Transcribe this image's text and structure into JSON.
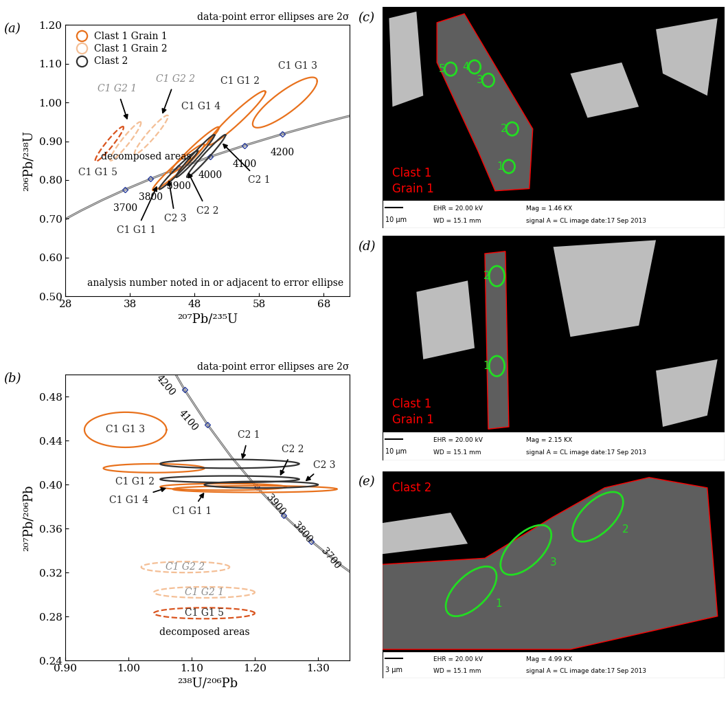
{
  "chart_data": [
    {
      "type": "concordia",
      "panel": "(a)",
      "note": "data-point error ellipses are 2σ",
      "x_label": "²⁰⁷Pb/²³⁵U",
      "y_label": "²⁰⁶Pb/²³⁸U",
      "xlim": [
        28,
        72
      ],
      "xticks": [
        28,
        38,
        48,
        58,
        68
      ],
      "ylim": [
        0.5,
        1.2
      ],
      "yticks": [
        {
          "value": 0.5,
          "label": "0.50"
        },
        {
          "value": 0.6,
          "label": "0.60"
        },
        {
          "value": 0.7,
          "label": "0.70"
        },
        {
          "value": 0.8,
          "label": "0.80"
        },
        {
          "value": 0.9,
          "label": "0.90"
        },
        {
          "value": 1.0,
          "label": "1.00"
        },
        {
          "value": 1.1,
          "label": "1.10"
        },
        {
          "value": 1.2,
          "label": "1.20"
        }
      ],
      "legend": "upper left",
      "concordia": {
        "ages": [
          3400,
          3500,
          3600,
          3700,
          3800,
          3900,
          4000,
          4100,
          4200,
          4300,
          4400
        ],
        "x": [
          27.459,
          30.405,
          33.655,
          37.242,
          41.2,
          45.568,
          50.388,
          55.706,
          61.576,
          68.052,
          75.198
        ],
        "y": [
          0.6946,
          0.7211,
          0.748,
          0.7753,
          0.803,
          0.8312,
          0.8599,
          0.8889,
          0.9185,
          0.9485,
          0.9789
        ],
        "labeled_ages": [
          3700,
          3800,
          3900,
          4000,
          4100,
          4200
        ]
      },
      "series": [
        {
          "name": "Clast 1 Grain 1",
          "color": "#e8711c",
          "line_style": "solid",
          "points": [
            {
              "label": "C1 G1 1",
              "x": 45.5,
              "y": 0.833,
              "x_err": 4.0,
              "y_err": 0.06,
              "rho": 0.97
            },
            {
              "label": "C1 G1 2",
              "x": 54.5,
              "y": 0.96,
              "x_err": 4.5,
              "y_err": 0.07,
              "rho": 0.96
            },
            {
              "label": "C1 G1 3",
              "x": 62.0,
              "y": 1.0,
              "x_err": 5.0,
              "y_err": 0.065,
              "rho": 0.85
            },
            {
              "label": "C1 G1 4",
              "x": 48.0,
              "y": 0.877,
              "x_err": 3.8,
              "y_err": 0.06,
              "rho": 0.97
            },
            {
              "label": "C1 G1 5",
              "x": 34.8,
              "y": 0.893,
              "x_err": 2.2,
              "y_err": 0.045,
              "rho": 0.95,
              "line_style": "dashed",
              "color": "#d9541e"
            }
          ]
        },
        {
          "name": "Clast 1 Grain 2",
          "color": "#f4bf96",
          "line_style": "dashed",
          "points": [
            {
              "label": "C1 G2 1",
              "x": 37.3,
              "y": 0.9,
              "x_err": 2.4,
              "y_err": 0.05,
              "rho": 0.95
            },
            {
              "label": "C1 G2 2",
              "x": 41.3,
              "y": 0.917,
              "x_err": 2.6,
              "y_err": 0.05,
              "rho": 0.95
            }
          ]
        },
        {
          "name": "Clast 2",
          "color": "#333333",
          "line_style": "solid",
          "points": [
            {
              "label": "C2 1",
              "x": 49.8,
              "y": 0.862,
              "x_err": 3.0,
              "y_err": 0.055,
              "rho": 0.98
            },
            {
              "label": "C2 2",
              "x": 48.1,
              "y": 0.862,
              "x_err": 3.0,
              "y_err": 0.055,
              "rho": 0.98
            },
            {
              "label": "C2 3",
              "x": 45.5,
              "y": 0.826,
              "x_err": 3.0,
              "y_err": 0.05,
              "rho": 0.98
            }
          ]
        }
      ],
      "annotations": [
        "decomposed areas",
        "analysis number noted in or adjacent to error ellipse"
      ]
    },
    {
      "type": "concordia",
      "panel": "(b)",
      "note": "data-point error ellipses are 2σ",
      "x_label": "²³⁸U/²⁰⁶Pb",
      "y_label": "²⁰⁷Pb/²⁰⁶Pb",
      "xlim": [
        0.9,
        1.35
      ],
      "xticks": [
        {
          "value": 0.9,
          "label": "0.90"
        },
        {
          "value": 1.0,
          "label": "1.00"
        },
        {
          "value": 1.1,
          "label": "1.10"
        },
        {
          "value": 1.2,
          "label": "1.20"
        },
        {
          "value": 1.3,
          "label": "1.30"
        }
      ],
      "ylim": [
        0.24,
        0.5
      ],
      "yticks": [
        0.24,
        0.28,
        0.32,
        0.36,
        {
          "value": 0.4,
          "label": "0.40"
        },
        0.44,
        0.48
      ],
      "concordia": {
        "ages": [
          3500,
          3600,
          3700,
          3800,
          3900,
          4000,
          4100,
          4200,
          4300
        ],
        "x": [
          1.3868,
          1.3369,
          1.2898,
          1.2453,
          1.2031,
          1.1629,
          1.125,
          1.0887,
          1.0543
        ],
        "y": [
          0.3059,
          0.32647,
          0.34854,
          0.37229,
          0.39779,
          0.42518,
          0.45472,
          0.48644,
          0.52059
        ],
        "labeled_ages": [
          3700,
          3800,
          3900,
          4100,
          4200
        ]
      },
      "series": [
        {
          "name": "Clast 1 Grain 1",
          "color": "#e8711c",
          "line_style": "solid",
          "points": [
            {
              "label": "C1 G1 1",
              "x": 1.2,
              "y": 0.396,
              "x_err": 0.13,
              "y_err": 0.003,
              "rho": 0.0
            },
            {
              "label": "C1 G1 2",
              "x": 1.04,
              "y": 0.415,
              "x_err": 0.08,
              "y_err": 0.004,
              "rho": 0.0
            },
            {
              "label": "C1 G1 3",
              "x": 0.995,
              "y": 0.45,
              "x_err": 0.065,
              "y_err": 0.016,
              "rho": 0.0
            },
            {
              "label": "C1 G1 4",
              "x": 1.15,
              "y": 0.398,
              "x_err": 0.1,
              "y_err": 0.003,
              "rho": 0.0
            },
            {
              "label": "C1 G1 5",
              "x": 1.12,
              "y": 0.283,
              "x_err": 0.08,
              "y_err": 0.005,
              "rho": 0.0,
              "line_style": "dashed",
              "color": "#d9541e"
            }
          ]
        },
        {
          "name": "Clast 1 Grain 2",
          "color": "#f4bf96",
          "line_style": "dashed",
          "points": [
            {
              "label": "C1 G2 1",
              "x": 1.12,
              "y": 0.302,
              "x_err": 0.08,
              "y_err": 0.005,
              "rho": 0.0
            },
            {
              "label": "C1 G2 2",
              "x": 1.09,
              "y": 0.325,
              "x_err": 0.07,
              "y_err": 0.005,
              "rho": 0.0
            }
          ]
        },
        {
          "name": "Clast 2",
          "color": "#333333",
          "line_style": "solid",
          "points": [
            {
              "label": "C2 1",
              "x": 1.16,
              "y": 0.419,
              "x_err": 0.11,
              "y_err": 0.004,
              "rho": 0.0
            },
            {
              "label": "C2 2",
              "x": 1.16,
              "y": 0.405,
              "x_err": 0.11,
              "y_err": 0.003,
              "rho": 0.0
            },
            {
              "label": "C2 3",
              "x": 1.21,
              "y": 0.4,
              "x_err": 0.09,
              "y_err": 0.003,
              "rho": 0.0
            }
          ]
        }
      ],
      "annotations": [
        "decomposed areas"
      ]
    }
  ],
  "images": [
    {
      "panel": "(c)",
      "label": [
        "Clast 1",
        "Grain 1"
      ],
      "spots": [
        "1",
        "2",
        "3",
        "4",
        "5"
      ],
      "scale_bar": "10 µm",
      "info": [
        [
          "EHR = 20.00 kV",
          "Mag = 1.46 KX"
        ],
        [
          "WD = 15.1 mm",
          "signal A = CL image date:17 Sep 2013"
        ]
      ]
    },
    {
      "panel": "(d)",
      "label": [
        "Clast 1",
        "Grain 1"
      ],
      "spots": [
        "1",
        "2"
      ],
      "scale_bar": "10 µm",
      "info": [
        [
          "EHR = 20.00 kV",
          "Mag = 2.15 KX"
        ],
        [
          "WD = 15.1 mm",
          "signal A = CL image date:17 Sep 2013"
        ]
      ]
    },
    {
      "panel": "(e)",
      "label": [
        "Clast 2"
      ],
      "spots": [
        "1",
        "2",
        "3"
      ],
      "scale_bar": "3 µm",
      "info": [
        [
          "EHR = 20.00 kV",
          "Mag = 4.99 KX"
        ],
        [
          "WD = 15.1 mm",
          "signal A = CL image date:17 Sep 2013"
        ]
      ]
    }
  ]
}
